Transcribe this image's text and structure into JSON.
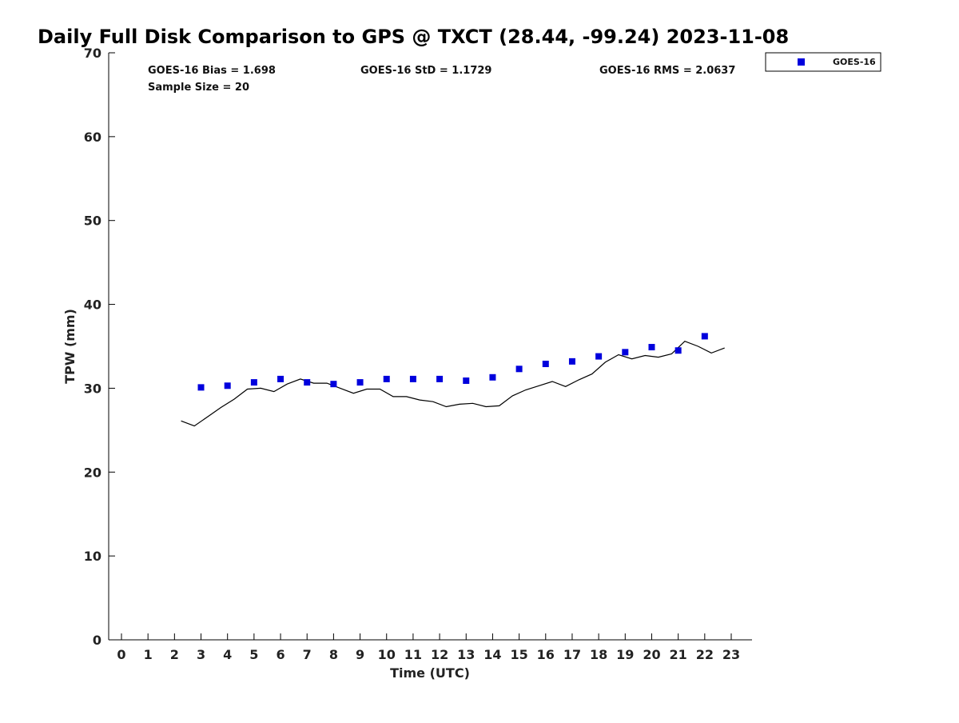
{
  "chart_data": {
    "type": "scatter",
    "title": "Daily Full Disk Comparison to GPS @ TXCT (28.44, -99.24) 2023-11-08",
    "xlabel": "Time (UTC)",
    "ylabel": "TPW (mm)",
    "xlim": [
      -0.5,
      23.8
    ],
    "ylim": [
      0,
      70
    ],
    "x_ticks": [
      0,
      1,
      2,
      3,
      4,
      5,
      6,
      7,
      8,
      9,
      10,
      11,
      12,
      13,
      14,
      15,
      16,
      17,
      18,
      19,
      20,
      21,
      22,
      23
    ],
    "y_ticks": [
      0,
      10,
      20,
      30,
      40,
      50,
      60,
      70
    ],
    "grid": false,
    "legend": {
      "position": "top-right",
      "entries": [
        "GOES-16"
      ]
    },
    "stats": {
      "bias": "GOES-16 Bias = 1.698",
      "std": "GOES-16 StD = 1.1729",
      "rms": "GOES-16 RMS = 2.0637",
      "sample_size": "Sample Size = 20"
    },
    "series": [
      {
        "name": "GOES-16",
        "kind": "scatter",
        "marker": "square",
        "color": "#0000dd",
        "x": [
          3,
          4,
          5,
          6,
          7,
          8,
          9,
          10,
          11,
          12,
          13,
          14,
          15,
          16,
          17,
          18,
          19,
          20,
          21,
          22
        ],
        "y": [
          30.1,
          30.3,
          30.7,
          31.1,
          30.7,
          30.5,
          30.7,
          31.1,
          31.1,
          31.1,
          30.9,
          31.3,
          32.3,
          32.9,
          33.2,
          33.8,
          34.3,
          34.9,
          34.5,
          36.2
        ]
      },
      {
        "kind": "line",
        "color": "#000000",
        "x": [
          2.25,
          2.75,
          3.25,
          3.75,
          4.25,
          4.75,
          5.25,
          5.75,
          6.25,
          6.75,
          7.25,
          7.75,
          8.25,
          8.75,
          9.25,
          9.75,
          10.25,
          10.75,
          11.25,
          11.75,
          12.25,
          12.75,
          13.25,
          13.75,
          14.25,
          14.75,
          15.25,
          15.75,
          16.25,
          16.75,
          17.25,
          17.75,
          18.25,
          18.75,
          19.25,
          19.75,
          20.25,
          20.75,
          21.25,
          21.75,
          22.25,
          22.75
        ],
        "y": [
          26.1,
          25.5,
          26.6,
          27.7,
          28.7,
          29.9,
          30.0,
          29.6,
          30.5,
          31.1,
          30.6,
          30.6,
          30.0,
          29.4,
          29.9,
          29.9,
          29.0,
          29.0,
          28.6,
          28.4,
          27.8,
          28.1,
          28.2,
          27.8,
          27.9,
          29.1,
          29.8,
          30.3,
          30.8,
          30.2,
          31.0,
          31.7,
          33.1,
          34.0,
          33.5,
          33.9,
          33.7,
          34.1,
          35.6,
          35.0,
          34.2,
          34.8
        ]
      }
    ]
  }
}
